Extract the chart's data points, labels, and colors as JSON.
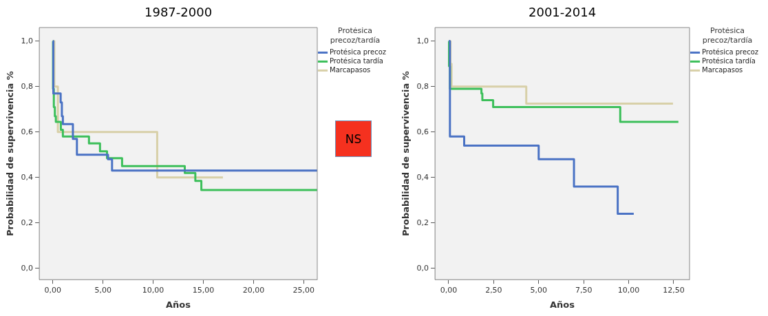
{
  "chart_data": [
    {
      "type": "step",
      "title": "1987-2000",
      "xlabel": "Años",
      "ylabel": "Probabilidad de supervivencia %",
      "legend_title": "Protésica precoz/tardía",
      "legend": "top right",
      "grid": false,
      "annotations": [
        "NS"
      ],
      "xlim": [
        -1.35,
        26.35
      ],
      "ylim": [
        -0.05,
        1.06
      ],
      "xticks": [
        {
          "value": 0,
          "label": "0,00"
        },
        {
          "value": 5,
          "label": "5,00"
        },
        {
          "value": 10,
          "label": "10,00"
        },
        {
          "value": 15,
          "label": "15,00"
        },
        {
          "value": 20,
          "label": "20,00"
        },
        {
          "value": 25,
          "label": "25,00"
        }
      ],
      "yticks": [
        {
          "value": 0,
          "label": "0,0"
        },
        {
          "value": 0.2,
          "label": "0,2"
        },
        {
          "value": 0.4,
          "label": "0,4"
        },
        {
          "value": 0.6,
          "label": "0,6"
        },
        {
          "value": 0.8,
          "label": "0,8"
        },
        {
          "value": 1,
          "label": "1,0"
        }
      ],
      "series": [
        {
          "name": "Protésica precoz",
          "color": "#4a72c4",
          "x": [
            0,
            0.05,
            0.78,
            0.9,
            1.0,
            2.0,
            2.4,
            5.5,
            5.9,
            26.35
          ],
          "values": [
            1.0,
            0.77,
            0.73,
            0.67,
            0.635,
            0.57,
            0.5,
            0.48,
            0.43,
            0.43
          ]
        },
        {
          "name": "Protésica tardía",
          "color": "#3cbf5a",
          "x": [
            0,
            0.02,
            0.1,
            0.2,
            0.3,
            0.8,
            1.0,
            3.6,
            4.7,
            5.4,
            6.9,
            13.15,
            14.2,
            14.8,
            26.35
          ],
          "values": [
            1.0,
            0.79,
            0.71,
            0.67,
            0.645,
            0.61,
            0.58,
            0.55,
            0.515,
            0.485,
            0.45,
            0.42,
            0.385,
            0.345,
            0.345
          ]
        },
        {
          "name": "Marcapasos",
          "color": "#d8d0a8",
          "x": [
            0,
            0.15,
            0.5,
            10.4,
            16.95
          ],
          "values": [
            1.0,
            0.8,
            0.6,
            0.4,
            0.4
          ]
        }
      ]
    },
    {
      "type": "step",
      "title": "2001-2014",
      "xlabel": "Años",
      "ylabel": "Probabilidad de supervivencia %",
      "legend_title": "Protésica precoz/tardía",
      "legend": "top right",
      "grid": false,
      "xlim": [
        -0.76,
        13.38
      ],
      "ylim": [
        -0.05,
        1.06
      ],
      "xticks": [
        {
          "value": 0,
          "label": "0,00"
        },
        {
          "value": 2.5,
          "label": "2,50"
        },
        {
          "value": 5,
          "label": "5,00"
        },
        {
          "value": 7.5,
          "label": "7,50"
        },
        {
          "value": 10,
          "label": "10,00"
        },
        {
          "value": 12.5,
          "label": "12,50"
        }
      ],
      "yticks": [
        {
          "value": 0,
          "label": "0,0"
        },
        {
          "value": 0.2,
          "label": "0,2"
        },
        {
          "value": 0.4,
          "label": "0,4"
        },
        {
          "value": 0.6,
          "label": "0,6"
        },
        {
          "value": 0.8,
          "label": "0,8"
        },
        {
          "value": 1,
          "label": "1,0"
        }
      ],
      "series": [
        {
          "name": "Protésica precoz",
          "color": "#4a72c4",
          "x": [
            0,
            0.07,
            0.86,
            5.0,
            6.96,
            9.39,
            10.28
          ],
          "values": [
            1.0,
            0.58,
            0.54,
            0.48,
            0.36,
            0.24,
            0.24
          ]
        },
        {
          "name": "Protésica tardía",
          "color": "#3cbf5a",
          "x": [
            0,
            0.02,
            0.07,
            1.82,
            1.87,
            2.47,
            9.53,
            12.76
          ],
          "values": [
            1.0,
            0.89,
            0.79,
            0.77,
            0.74,
            0.71,
            0.645,
            0.645
          ]
        },
        {
          "name": "Marcapasos",
          "color": "#d8d0a8",
          "x": [
            0,
            0.1,
            0.16,
            4.31,
            12.46
          ],
          "values": [
            1.0,
            0.9,
            0.8,
            0.725,
            0.725
          ]
        }
      ]
    }
  ]
}
